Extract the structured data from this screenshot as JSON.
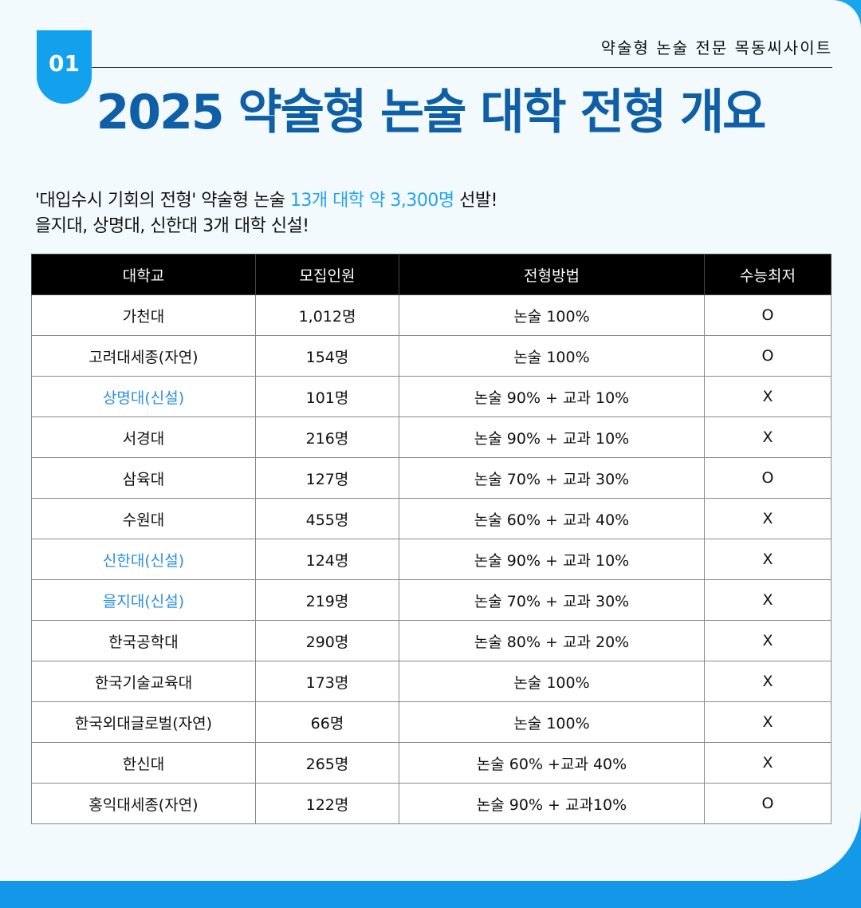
{
  "header": {
    "badge": "01",
    "site": "약술형 논술 전문 목동씨사이트",
    "title": "2025 약술형 논술 대학 전형 개요"
  },
  "intro": {
    "line1_a": "'대입수시 기회의 전형' 약술형 논술 ",
    "line1_highlight": "13개 대학 약 3,300명",
    "line1_b": " 선발!",
    "line2": "을지대, 상명대, 신한대 3개 대학 신설!"
  },
  "colors": {
    "accent": "#12a1ec",
    "title": "#0f5fa6",
    "new_school": "#2a8ee2"
  },
  "table": {
    "headers": [
      "대학교",
      "모집인원",
      "전형방법",
      "수능최저"
    ],
    "rows": [
      {
        "school": "가천대",
        "count": "1,012명",
        "method": "논술 100%",
        "min": "O",
        "new": false
      },
      {
        "school": "고려대세종(자연)",
        "count": "154명",
        "method": "논술 100%",
        "min": "O",
        "new": false
      },
      {
        "school": "상명대(신설)",
        "count": "101명",
        "method": "논술 90% + 교과 10%",
        "min": "X",
        "new": true
      },
      {
        "school": "서경대",
        "count": "216명",
        "method": "논술 90% + 교과 10%",
        "min": "X",
        "new": false
      },
      {
        "school": "삼육대",
        "count": "127명",
        "method": "논술 70% + 교과 30%",
        "min": "O",
        "new": false
      },
      {
        "school": "수원대",
        "count": "455명",
        "method": "논술 60% + 교과 40%",
        "min": "X",
        "new": false
      },
      {
        "school": "신한대(신설)",
        "count": "124명",
        "method": "논술 90% + 교과 10%",
        "min": "X",
        "new": true
      },
      {
        "school": "을지대(신설)",
        "count": "219명",
        "method": "논술 70% + 교과 30%",
        "min": "X",
        "new": true
      },
      {
        "school": "한국공학대",
        "count": "290명",
        "method": "논술 80% + 교과 20%",
        "min": "X",
        "new": false
      },
      {
        "school": "한국기술교육대",
        "count": "173명",
        "method": "논술 100%",
        "min": "X",
        "new": false
      },
      {
        "school": "한국외대글로벌(자연)",
        "count": "66명",
        "method": "논술 100%",
        "min": "X",
        "new": false
      },
      {
        "school": "한신대",
        "count": "265명",
        "method": "논술 60% +교과 40%",
        "min": "X",
        "new": false
      },
      {
        "school": "홍익대세종(자연)",
        "count": "122명",
        "method": "논술 90% + 교과10%",
        "min": "O",
        "new": false
      }
    ]
  }
}
